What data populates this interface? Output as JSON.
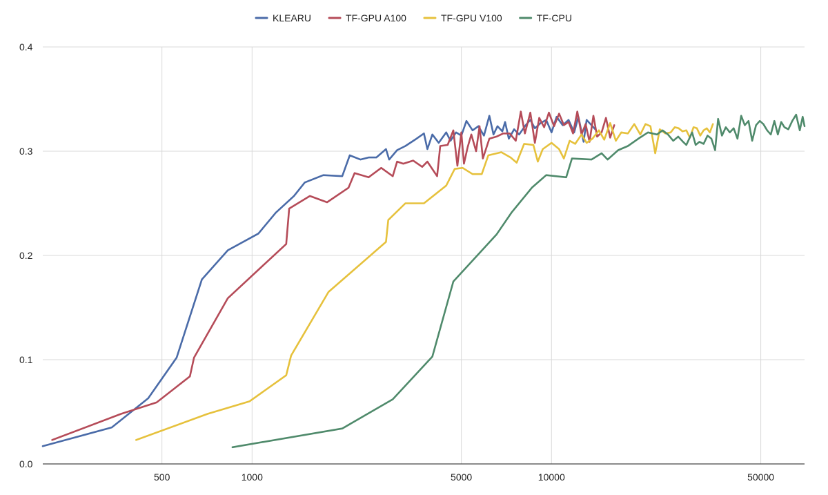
{
  "chart_data": {
    "type": "line",
    "x_scale": "log",
    "xlim": [
      200,
      70000
    ],
    "ylim": [
      0,
      0.4
    ],
    "x_ticks": [
      500,
      1000,
      5000,
      10000,
      50000
    ],
    "x_tick_labels": [
      "500",
      "1000",
      "5000",
      "10000",
      "50000"
    ],
    "y_ticks": [
      0,
      0.1,
      0.2,
      0.3,
      0.4
    ],
    "y_tick_labels": [
      "0.0",
      "0.1",
      "0.2",
      "0.3",
      "0.4"
    ],
    "grid": true,
    "legend_position": "top-center",
    "title": "",
    "xlabel": "",
    "ylabel": "",
    "series": [
      {
        "name": "KLEARU",
        "color": "#4a6ba8",
        "points": [
          [
            200,
            0.017
          ],
          [
            340,
            0.035
          ],
          [
            450,
            0.063
          ],
          [
            560,
            0.102
          ],
          [
            680,
            0.177
          ],
          [
            830,
            0.205
          ],
          [
            1050,
            0.221
          ],
          [
            1200,
            0.241
          ],
          [
            1380,
            0.257
          ],
          [
            1500,
            0.27
          ],
          [
            1730,
            0.277
          ],
          [
            2000,
            0.276
          ],
          [
            2120,
            0.296
          ],
          [
            2300,
            0.292
          ],
          [
            2450,
            0.294
          ],
          [
            2600,
            0.294
          ],
          [
            2800,
            0.302
          ],
          [
            2870,
            0.292
          ],
          [
            3050,
            0.301
          ],
          [
            3250,
            0.305
          ],
          [
            3500,
            0.311
          ],
          [
            3750,
            0.317
          ],
          [
            3850,
            0.302
          ],
          [
            4000,
            0.316
          ],
          [
            4200,
            0.308
          ],
          [
            4450,
            0.318
          ],
          [
            4600,
            0.31
          ],
          [
            4800,
            0.318
          ],
          [
            5000,
            0.315
          ],
          [
            5200,
            0.329
          ],
          [
            5450,
            0.32
          ],
          [
            5700,
            0.324
          ],
          [
            5950,
            0.315
          ],
          [
            6200,
            0.334
          ],
          [
            6400,
            0.316
          ],
          [
            6600,
            0.324
          ],
          [
            6850,
            0.319
          ],
          [
            7000,
            0.328
          ],
          [
            7200,
            0.312
          ],
          [
            7500,
            0.321
          ],
          [
            7800,
            0.316
          ],
          [
            8200,
            0.325
          ],
          [
            8500,
            0.33
          ],
          [
            8800,
            0.322
          ],
          [
            9200,
            0.327
          ],
          [
            9600,
            0.33
          ],
          [
            10000,
            0.318
          ],
          [
            10400,
            0.333
          ],
          [
            10900,
            0.325
          ],
          [
            11400,
            0.33
          ],
          [
            11900,
            0.318
          ],
          [
            12300,
            0.333
          ],
          [
            12800,
            0.309
          ],
          [
            13100,
            0.33
          ],
          [
            13600,
            0.325
          ],
          [
            14000,
            0.321
          ]
        ]
      },
      {
        "name": "TF-GPU A100",
        "color": "#b54b58",
        "points": [
          [
            215,
            0.023
          ],
          [
            365,
            0.048
          ],
          [
            480,
            0.059
          ],
          [
            620,
            0.084
          ],
          [
            640,
            0.102
          ],
          [
            830,
            0.159
          ],
          [
            1300,
            0.211
          ],
          [
            1330,
            0.245
          ],
          [
            1560,
            0.257
          ],
          [
            1780,
            0.251
          ],
          [
            2100,
            0.265
          ],
          [
            2200,
            0.279
          ],
          [
            2450,
            0.275
          ],
          [
            2700,
            0.284
          ],
          [
            2950,
            0.276
          ],
          [
            3050,
            0.29
          ],
          [
            3200,
            0.288
          ],
          [
            3450,
            0.291
          ],
          [
            3700,
            0.285
          ],
          [
            3850,
            0.29
          ],
          [
            4150,
            0.276
          ],
          [
            4250,
            0.305
          ],
          [
            4500,
            0.306
          ],
          [
            4700,
            0.32
          ],
          [
            4850,
            0.286
          ],
          [
            5000,
            0.318
          ],
          [
            5100,
            0.288
          ],
          [
            5250,
            0.304
          ],
          [
            5400,
            0.316
          ],
          [
            5600,
            0.3
          ],
          [
            5750,
            0.324
          ],
          [
            5900,
            0.293
          ],
          [
            6200,
            0.312
          ],
          [
            6550,
            0.314
          ],
          [
            6900,
            0.317
          ],
          [
            7250,
            0.317
          ],
          [
            7600,
            0.31
          ],
          [
            7900,
            0.338
          ],
          [
            8150,
            0.317
          ],
          [
            8500,
            0.337
          ],
          [
            8800,
            0.308
          ],
          [
            9100,
            0.332
          ],
          [
            9450,
            0.323
          ],
          [
            9800,
            0.337
          ],
          [
            10200,
            0.324
          ],
          [
            10600,
            0.336
          ],
          [
            11000,
            0.325
          ],
          [
            11400,
            0.328
          ],
          [
            11800,
            0.317
          ],
          [
            12200,
            0.338
          ],
          [
            12600,
            0.316
          ],
          [
            13000,
            0.326
          ],
          [
            13400,
            0.309
          ],
          [
            13800,
            0.334
          ],
          [
            14200,
            0.314
          ],
          [
            14700,
            0.318
          ],
          [
            15200,
            0.332
          ],
          [
            15700,
            0.313
          ],
          [
            16200,
            0.325
          ]
        ]
      },
      {
        "name": "TF-GPU V100",
        "color": "#e6c13c",
        "points": [
          [
            410,
            0.023
          ],
          [
            710,
            0.048
          ],
          [
            980,
            0.06
          ],
          [
            1300,
            0.085
          ],
          [
            1350,
            0.104
          ],
          [
            1800,
            0.165
          ],
          [
            2800,
            0.213
          ],
          [
            2850,
            0.234
          ],
          [
            3250,
            0.25
          ],
          [
            3750,
            0.25
          ],
          [
            4450,
            0.267
          ],
          [
            4750,
            0.283
          ],
          [
            5050,
            0.284
          ],
          [
            5450,
            0.278
          ],
          [
            5850,
            0.278
          ],
          [
            6150,
            0.296
          ],
          [
            6800,
            0.299
          ],
          [
            7300,
            0.294
          ],
          [
            7650,
            0.289
          ],
          [
            8100,
            0.307
          ],
          [
            8700,
            0.306
          ],
          [
            9000,
            0.29
          ],
          [
            9350,
            0.302
          ],
          [
            10000,
            0.308
          ],
          [
            10600,
            0.302
          ],
          [
            11000,
            0.293
          ],
          [
            11500,
            0.31
          ],
          [
            12000,
            0.307
          ],
          [
            12600,
            0.316
          ],
          [
            13100,
            0.308
          ],
          [
            13700,
            0.312
          ],
          [
            14400,
            0.32
          ],
          [
            15000,
            0.311
          ],
          [
            15700,
            0.327
          ],
          [
            16400,
            0.31
          ],
          [
            17100,
            0.318
          ],
          [
            18000,
            0.317
          ],
          [
            18900,
            0.326
          ],
          [
            19800,
            0.316
          ],
          [
            20600,
            0.326
          ],
          [
            21400,
            0.324
          ],
          [
            22200,
            0.298
          ],
          [
            23000,
            0.321
          ],
          [
            24000,
            0.317
          ],
          [
            25000,
            0.318
          ],
          [
            25800,
            0.323
          ],
          [
            26600,
            0.322
          ],
          [
            27400,
            0.319
          ],
          [
            28200,
            0.32
          ],
          [
            29000,
            0.313
          ],
          [
            29800,
            0.323
          ],
          [
            30600,
            0.322
          ],
          [
            31400,
            0.315
          ],
          [
            32200,
            0.32
          ],
          [
            33000,
            0.322
          ],
          [
            33800,
            0.318
          ],
          [
            34600,
            0.326
          ]
        ]
      },
      {
        "name": "TF-CPU",
        "color": "#4f8a6b",
        "points": [
          [
            860,
            0.016
          ],
          [
            2000,
            0.034
          ],
          [
            2950,
            0.062
          ],
          [
            4000,
            0.103
          ],
          [
            4700,
            0.175
          ],
          [
            6550,
            0.22
          ],
          [
            7350,
            0.241
          ],
          [
            8600,
            0.265
          ],
          [
            9600,
            0.277
          ],
          [
            11200,
            0.275
          ],
          [
            11700,
            0.293
          ],
          [
            13600,
            0.292
          ],
          [
            14700,
            0.298
          ],
          [
            15400,
            0.292
          ],
          [
            16700,
            0.301
          ],
          [
            18000,
            0.305
          ],
          [
            19500,
            0.312
          ],
          [
            21000,
            0.318
          ],
          [
            22500,
            0.316
          ],
          [
            23500,
            0.32
          ],
          [
            24500,
            0.316
          ],
          [
            25500,
            0.31
          ],
          [
            26500,
            0.314
          ],
          [
            27500,
            0.309
          ],
          [
            28200,
            0.306
          ],
          [
            29500,
            0.318
          ],
          [
            30300,
            0.306
          ],
          [
            31200,
            0.309
          ],
          [
            32200,
            0.307
          ],
          [
            33200,
            0.315
          ],
          [
            34200,
            0.312
          ],
          [
            35200,
            0.301
          ],
          [
            36000,
            0.331
          ],
          [
            37100,
            0.315
          ],
          [
            38200,
            0.323
          ],
          [
            39400,
            0.318
          ],
          [
            40600,
            0.322
          ],
          [
            41800,
            0.312
          ],
          [
            43000,
            0.334
          ],
          [
            44200,
            0.325
          ],
          [
            45500,
            0.329
          ],
          [
            46800,
            0.31
          ],
          [
            48200,
            0.325
          ],
          [
            49600,
            0.329
          ],
          [
            51000,
            0.326
          ],
          [
            52500,
            0.32
          ],
          [
            54000,
            0.316
          ],
          [
            55500,
            0.329
          ],
          [
            57000,
            0.316
          ],
          [
            58500,
            0.328
          ],
          [
            60000,
            0.323
          ],
          [
            61800,
            0.321
          ],
          [
            63700,
            0.329
          ],
          [
            65600,
            0.335
          ],
          [
            67500,
            0.32
          ],
          [
            69000,
            0.333
          ],
          [
            70000,
            0.324
          ]
        ]
      }
    ]
  }
}
